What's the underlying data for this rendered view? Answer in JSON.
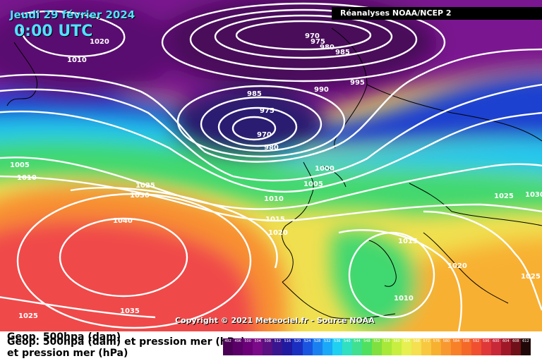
{
  "header": {
    "date": "Jeudi 29 février 2024",
    "time": "0:00 UTC",
    "source": "Réanalyses NOAA/NCEP 2"
  },
  "copyright": "Copyright © 2021 Meteociel.fr - Source NOAA",
  "legend": {
    "title_geop": "Geop. 500hpa (dam)",
    "title_geop_overlay": "Geop. 500hpa (dam) et pression mer (hPa)",
    "title_pressure": "et pression mer (hPa)",
    "scale_values": [
      "492",
      "496",
      "500",
      "504",
      "508",
      "512",
      "516",
      "520",
      "524",
      "528",
      "532",
      "536",
      "540",
      "544",
      "548",
      "552",
      "556",
      "560",
      "564",
      "568",
      "572",
      "576",
      "580",
      "584",
      "588",
      "592",
      "596",
      "600",
      "604",
      "608",
      "612"
    ],
    "scale_colors": [
      "#4a0055",
      "#5a0068",
      "#6b0078",
      "#7a0a88",
      "#5a1080",
      "#3a1590",
      "#201aa0",
      "#1a2fc0",
      "#1a55e0",
      "#1a80f0",
      "#1aa8f8",
      "#20d0f0",
      "#30e0c0",
      "#40e090",
      "#50e060",
      "#80e040",
      "#a8e838",
      "#c8ee40",
      "#e6f050",
      "#f4e050",
      "#f8c840",
      "#f8b030",
      "#f89830",
      "#f88028",
      "#f46828",
      "#f05030",
      "#e03838",
      "#c82838",
      "#a01828",
      "#701018",
      "#200808"
    ],
    "colors": {
      "purple_deep": "#4a0a5a",
      "purple": "#7a1890",
      "blue": "#1a40d0",
      "cyan": "#20c8f0",
      "green": "#40d870",
      "yellow": "#f0e050",
      "orange": "#f89030",
      "red": "#f04848",
      "contour": "#ffffff"
    }
  },
  "isobar_labels": [
    {
      "text": "1020"
    },
    {
      "text": "1010"
    },
    {
      "text": "970"
    },
    {
      "text": "975"
    },
    {
      "text": "980"
    },
    {
      "text": "985"
    },
    {
      "text": "995"
    },
    {
      "text": "985"
    },
    {
      "text": "990"
    },
    {
      "text": "975"
    },
    {
      "text": "970"
    },
    {
      "text": "980"
    },
    {
      "text": "1005"
    },
    {
      "text": "1010"
    },
    {
      "text": "1000"
    },
    {
      "text": "1005"
    },
    {
      "text": "1025"
    },
    {
      "text": "1030"
    },
    {
      "text": "1010"
    },
    {
      "text": "1015"
    },
    {
      "text": "1020"
    },
    {
      "text": "1040"
    },
    {
      "text": "1015"
    },
    {
      "text": "1025"
    },
    {
      "text": "1030"
    },
    {
      "text": "1020"
    },
    {
      "text": "1025"
    },
    {
      "text": "1035"
    },
    {
      "text": "1010"
    },
    {
      "text": "1025"
    }
  ]
}
